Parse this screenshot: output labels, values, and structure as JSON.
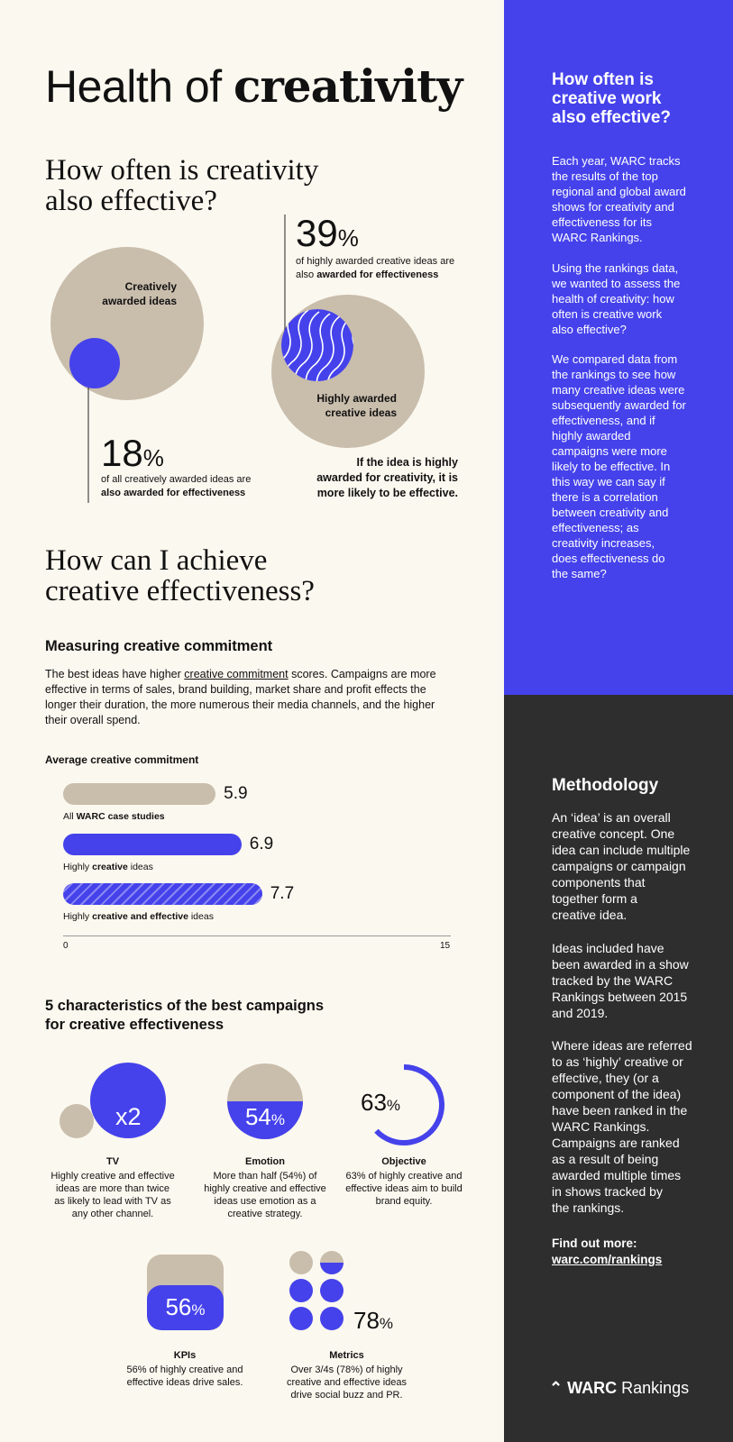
{
  "title": {
    "light": "Health of ",
    "bold": "creativity"
  },
  "section1": {
    "heading_line1": "How often is creativity",
    "heading_line2": "also effective?",
    "circle1_label_line1": "Creatively",
    "circle1_label_line2": "awarded ideas",
    "stat1_value": "18",
    "stat1_unit": "%",
    "stat1_line1": "of all creatively awarded ideas are",
    "stat1_line2": "also awarded for effectiveness",
    "stat2_value": "39",
    "stat2_unit": "%",
    "stat2_line1": "of highly awarded creative ideas are",
    "stat2_line2_plain": "also ",
    "stat2_line2_bold": "awarded for effectiveness",
    "circle2_label_line1": "Highly awarded",
    "circle2_label_line2": "creative ideas",
    "conclusion_line1": "If the idea is highly",
    "conclusion_line2": "awarded for creativity, it is",
    "conclusion_line3": "more likely to be effective."
  },
  "section2": {
    "heading_line1": "How can I achieve",
    "heading_line2": "creative effectiveness?",
    "subheading": "Measuring creative commitment",
    "para_pre": "The best ideas have higher ",
    "para_link": "creative commitment",
    "para_post": " scores. Campaigns are more effective in terms of sales, brand building, market share and profit effects the longer their duration, the more numerous their media channels, and the higher their overall spend."
  },
  "chart_data": {
    "type": "bar",
    "title": "Average creative commitment",
    "xlim": [
      0,
      15
    ],
    "tick_labels": [
      "0",
      "15"
    ],
    "categories": [
      "All WARC case studies",
      "Highly creative ideas",
      "Highly creative and effective ideas"
    ],
    "values": [
      5.9,
      6.9,
      7.7
    ],
    "value_labels": [
      "5.9",
      "6.9",
      "7.7"
    ],
    "label_parts": [
      {
        "plain1": "All ",
        "bold": "WARC case studies",
        "plain2": ""
      },
      {
        "plain1": "Highly ",
        "bold": "creative",
        "plain2": " ideas"
      },
      {
        "plain1": "Highly ",
        "bold": "creative and effective",
        "plain2": " ideas"
      }
    ],
    "colors": [
      "#C9BDAC",
      "#4542EB",
      "hatched #4542EB"
    ]
  },
  "characteristics": {
    "heading_line1": "5 characteristics of the best campaigns",
    "heading_line2": "for creative effectiveness",
    "items": [
      {
        "name": "TV",
        "value": "x2",
        "desc": "Highly creative and effective ideas are more than twice as likely to lead with TV as any other channel."
      },
      {
        "name": "Emotion",
        "value": "54",
        "unit": "%",
        "desc": "More than half (54%) of highly creative and effective ideas use emotion as a creative strategy."
      },
      {
        "name": "Objective",
        "value": "63",
        "unit": "%",
        "desc": "63% of highly creative and effective ideas aim to build brand equity."
      },
      {
        "name": "KPIs",
        "value": "56",
        "unit": "%",
        "desc": "56% of highly creative and effective ideas drive sales."
      },
      {
        "name": "Metrics",
        "value": "78",
        "unit": "%",
        "desc": "Over 3/4s (78%) of highly creative and effective ideas drive social buzz and PR."
      }
    ]
  },
  "sidebar": {
    "top_heading": "How often is\ncreative work\nalso effective?",
    "top_p1": "Each year, WARC tracks\nthe results of the top\nregional and global award\nshows for creativity and\neffectiveness for its\nWARC Rankings.",
    "top_p2": "Using the rankings data,\nwe wanted to assess the\nhealth of creativity: how\noften is creative work\nalso effective?",
    "top_p3": "We compared data from\nthe rankings to see how\nmany creative ideas were\nsubsequently awarded for\neffectiveness, and if\nhighly awarded\ncampaigns were more\nlikely to be effective. In\nthis way we can say if\nthere is a correlation\nbetween creativity and\neffectiveness; as\ncreativity increases,\ndoes effectiveness do\nthe same?",
    "method_heading": "Methodology",
    "method_p1": "An ‘idea’ is an overall\ncreative concept. One\nidea can include multiple\ncampaigns or campaign\ncomponents that\ntogether form a\ncreative idea.",
    "method_p2": "Ideas included have\nbeen awarded in a show\ntracked by the WARC\nRankings between 2015\nand 2019.",
    "method_p3": "Where ideas are referred\nto as ‘highly’ creative or\neffective, they (or a\ncomponent of the idea)\nhave been ranked in the\nWARC Rankings.\nCampaigns are ranked\nas a result of being\nawarded multiple times\nin shows tracked by\nthe rankings.",
    "find_more": "Find out more:",
    "link": "warc.com/rankings",
    "logo_bold": "WARC",
    "logo_light": "Rankings"
  },
  "colors": {
    "accent": "#4542EB",
    "beige": "#C9BDAC",
    "background": "#FBF8EF",
    "dark": "#2E2E2E"
  }
}
